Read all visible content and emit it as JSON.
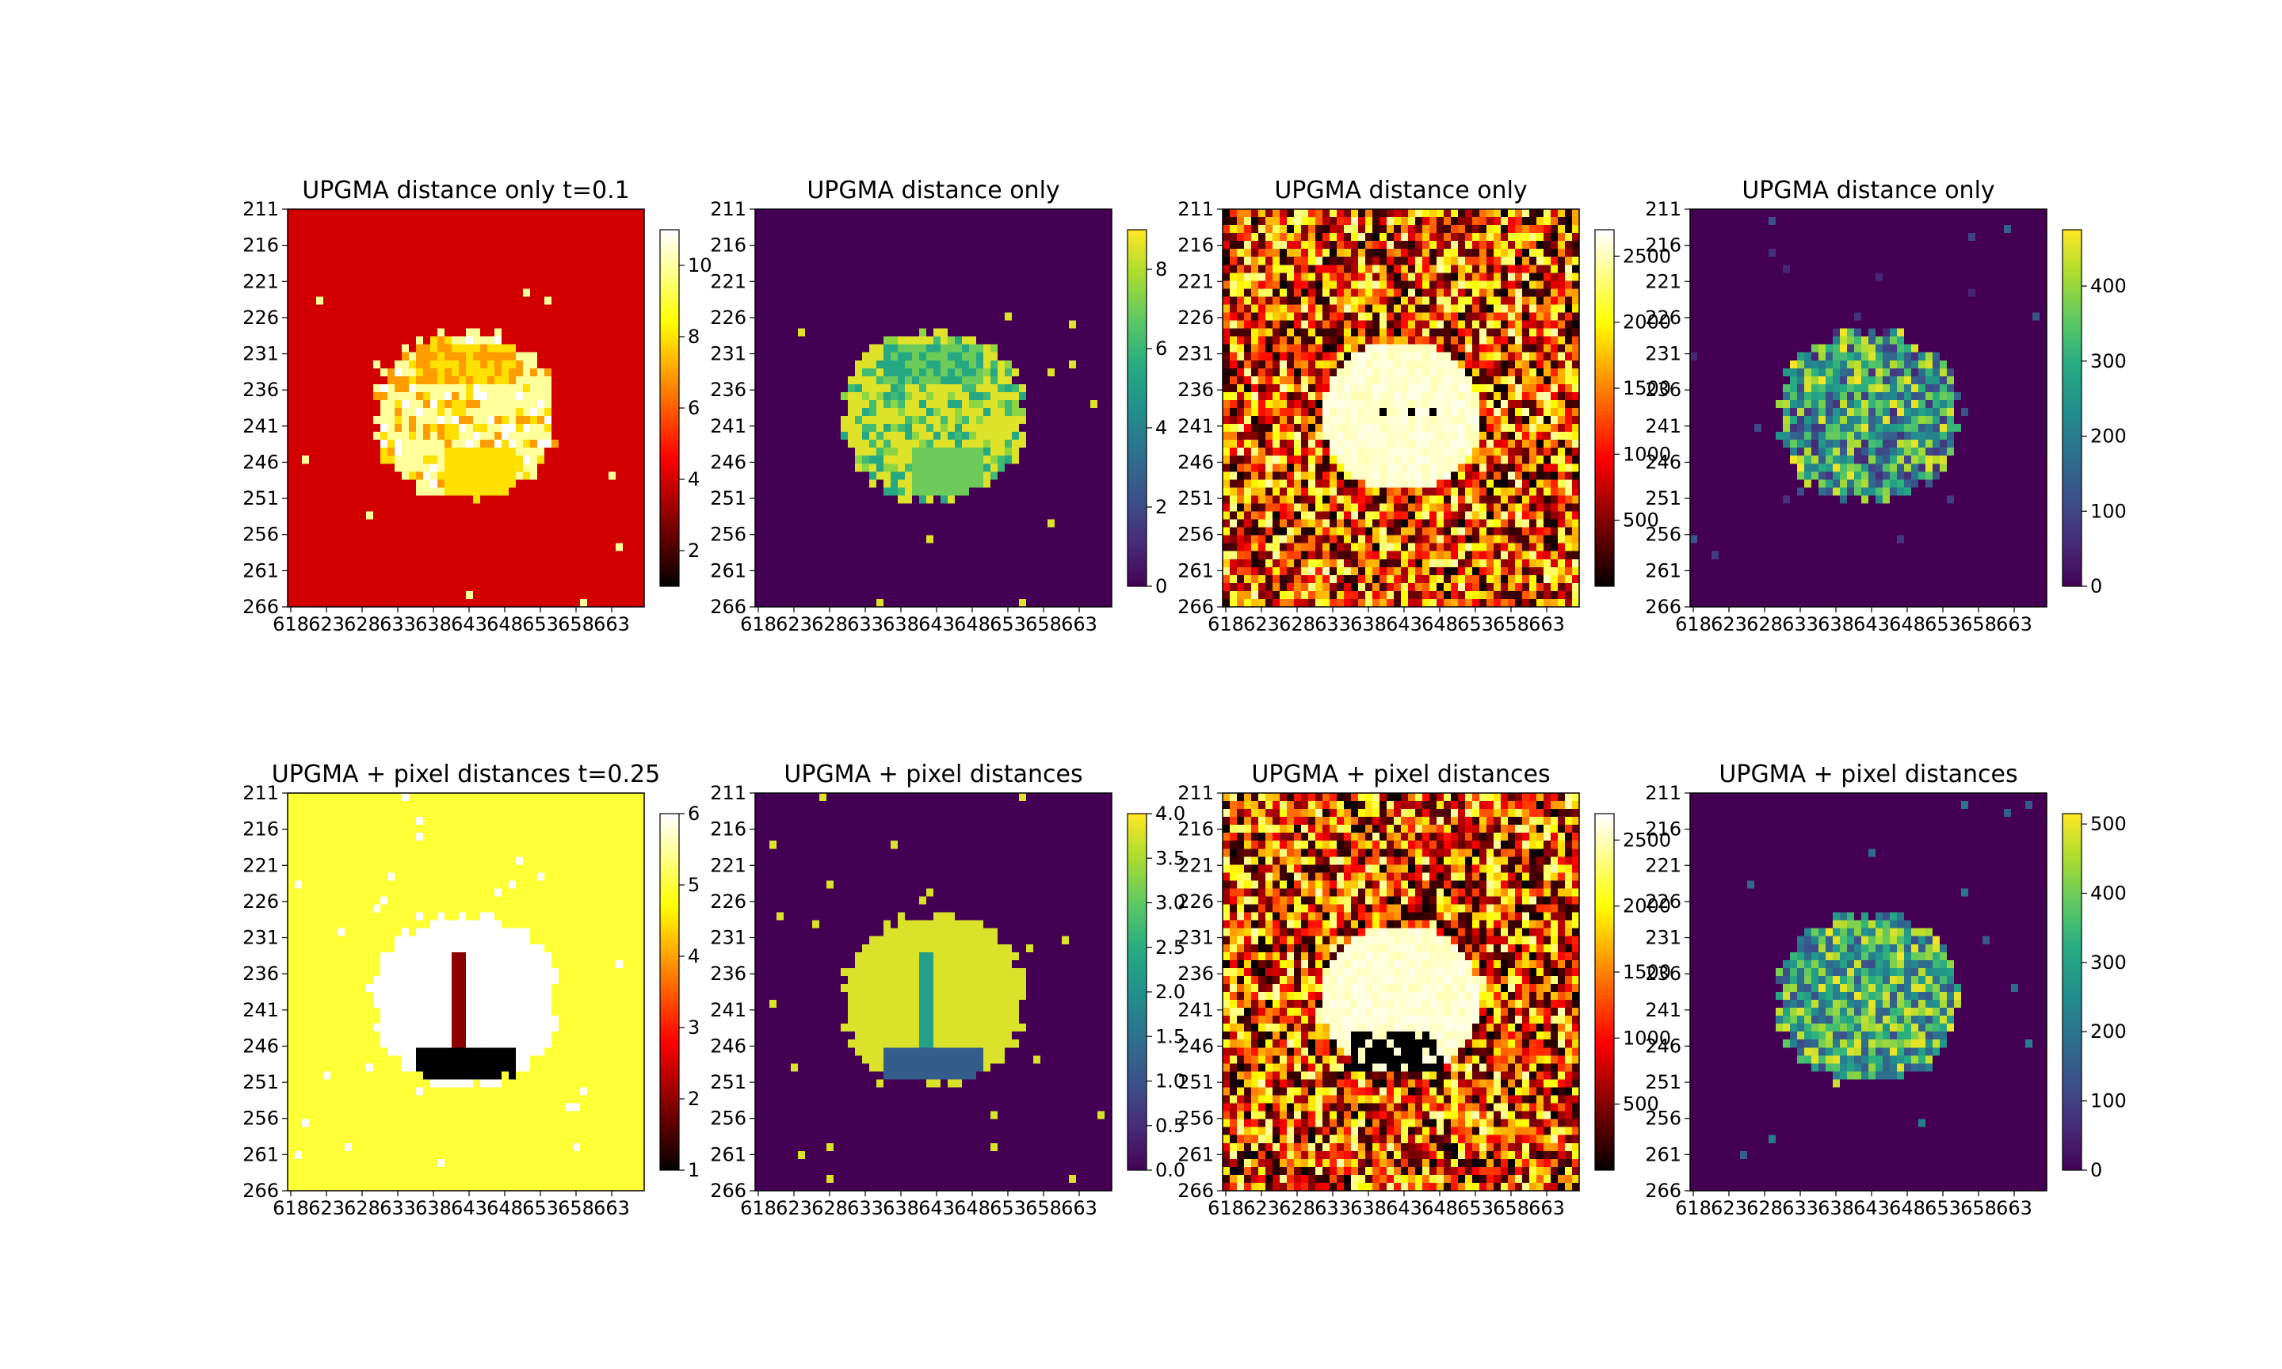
{
  "chart_data": [
    {
      "type": "heatmap",
      "title": "UPGMA distance only t=0.1",
      "colormap": "hot",
      "xticks": [
        "618",
        "623",
        "628",
        "633",
        "638",
        "643",
        "648",
        "653",
        "658",
        "663"
      ],
      "yticks": [
        "211",
        "216",
        "221",
        "226",
        "231",
        "236",
        "241",
        "246",
        "251",
        "256",
        "261",
        "266"
      ],
      "vmin": 1,
      "vmax": 11,
      "colorbar_ticks": [
        {
          "value": 2,
          "label": "2"
        },
        {
          "value": 4,
          "label": "4"
        },
        {
          "value": 6,
          "label": "6"
        },
        {
          "value": 8,
          "label": "8"
        },
        {
          "value": 10,
          "label": "10"
        }
      ],
      "pattern": "clusters",
      "background": 4,
      "blob_values": [
        10,
        10,
        10,
        10,
        7,
        8,
        11
      ],
      "core_values": [
        7,
        8
      ]
    },
    {
      "type": "heatmap",
      "title": "UPGMA distance only",
      "colormap": "viridis",
      "xticks": [
        "618",
        "623",
        "628",
        "633",
        "638",
        "643",
        "648",
        "653",
        "658",
        "663"
      ],
      "yticks": [
        "211",
        "216",
        "221",
        "226",
        "231",
        "236",
        "241",
        "246",
        "251",
        "256",
        "261",
        "266"
      ],
      "vmin": 0,
      "vmax": 9,
      "colorbar_ticks": [
        {
          "value": 0,
          "label": "0"
        },
        {
          "value": 2,
          "label": "2"
        },
        {
          "value": 4,
          "label": "4"
        },
        {
          "value": 6,
          "label": "6"
        },
        {
          "value": 8,
          "label": "8"
        }
      ],
      "pattern": "clusters",
      "background": 0,
      "blob_values": [
        8.6,
        8.6,
        8.6,
        8.6,
        5.5,
        6.2,
        7.5
      ],
      "core_values": [
        5.5,
        7.0
      ]
    },
    {
      "type": "heatmap",
      "title": "UPGMA distance only",
      "colormap": "hot",
      "xticks": [
        "618",
        "623",
        "628",
        "633",
        "638",
        "643",
        "648",
        "653",
        "658",
        "663"
      ],
      "yticks": [
        "211",
        "216",
        "221",
        "226",
        "231",
        "236",
        "241",
        "246",
        "251",
        "256",
        "261",
        "266"
      ],
      "vmin": 0,
      "vmax": 2700,
      "colorbar_ticks": [
        {
          "value": 500,
          "label": "500"
        },
        {
          "value": 1000,
          "label": "1000"
        },
        {
          "value": 1500,
          "label": "1500"
        },
        {
          "value": 2000,
          "label": "2000"
        },
        {
          "value": 2500,
          "label": "2500"
        }
      ],
      "pattern": "noisy",
      "noise_range": [
        200,
        2500
      ],
      "blob_value": 2650,
      "hole_value": 0
    },
    {
      "type": "heatmap",
      "title": "UPGMA distance only",
      "colormap": "viridis",
      "xticks": [
        "618",
        "623",
        "628",
        "633",
        "638",
        "643",
        "648",
        "653",
        "658",
        "663"
      ],
      "yticks": [
        "211",
        "216",
        "221",
        "226",
        "231",
        "236",
        "241",
        "246",
        "251",
        "256",
        "261",
        "266"
      ],
      "vmin": 0,
      "vmax": 475,
      "colorbar_ticks": [
        {
          "value": 0,
          "label": "0"
        },
        {
          "value": 100,
          "label": "100"
        },
        {
          "value": 200,
          "label": "200"
        },
        {
          "value": 300,
          "label": "300"
        },
        {
          "value": 400,
          "label": "400"
        }
      ],
      "pattern": "blobnoise",
      "background": 0,
      "blob_range": [
        50,
        470
      ]
    },
    {
      "type": "heatmap",
      "title": "UPGMA + pixel distances t=0.25",
      "colormap": "hot",
      "xticks": [
        "618",
        "623",
        "628",
        "633",
        "638",
        "643",
        "648",
        "653",
        "658",
        "663"
      ],
      "yticks": [
        "211",
        "216",
        "221",
        "226",
        "231",
        "236",
        "241",
        "246",
        "251",
        "256",
        "261",
        "266"
      ],
      "vmin": 1,
      "vmax": 6,
      "colorbar_ticks": [
        {
          "value": 1,
          "label": "1"
        },
        {
          "value": 2,
          "label": "2"
        },
        {
          "value": 3,
          "label": "3"
        },
        {
          "value": 4,
          "label": "4"
        },
        {
          "value": 5,
          "label": "5"
        },
        {
          "value": 6,
          "label": "6"
        }
      ],
      "pattern": "clusters2",
      "background": 5,
      "blob_value": 6,
      "stripe_value": 2,
      "bottom_value": 1
    },
    {
      "type": "heatmap",
      "title": "UPGMA + pixel distances",
      "colormap": "viridis",
      "xticks": [
        "618",
        "623",
        "628",
        "633",
        "638",
        "643",
        "648",
        "653",
        "658",
        "663"
      ],
      "yticks": [
        "211",
        "216",
        "221",
        "226",
        "231",
        "236",
        "241",
        "246",
        "251",
        "256",
        "261",
        "266"
      ],
      "vmin": 0,
      "vmax": 4,
      "colorbar_ticks": [
        {
          "value": 0,
          "label": "0.0"
        },
        {
          "value": 0.5,
          "label": "0.5"
        },
        {
          "value": 1,
          "label": "1.0"
        },
        {
          "value": 1.5,
          "label": "1.5"
        },
        {
          "value": 2,
          "label": "2.0"
        },
        {
          "value": 2.5,
          "label": "2.5"
        },
        {
          "value": 3,
          "label": "3.0"
        },
        {
          "value": 3.5,
          "label": "3.5"
        },
        {
          "value": 4,
          "label": "4.0"
        }
      ],
      "pattern": "clusters2",
      "background": 0,
      "blob_value": 3.8,
      "stripe_value": 2.3,
      "bottom_value": 1.2
    },
    {
      "type": "heatmap",
      "title": "UPGMA + pixel distances",
      "colormap": "hot",
      "xticks": [
        "618",
        "623",
        "628",
        "633",
        "638",
        "643",
        "648",
        "653",
        "658",
        "663"
      ],
      "yticks": [
        "211",
        "216",
        "221",
        "226",
        "231",
        "236",
        "241",
        "246",
        "251",
        "256",
        "261",
        "266"
      ],
      "vmin": 0,
      "vmax": 2700,
      "colorbar_ticks": [
        {
          "value": 500,
          "label": "500"
        },
        {
          "value": 1000,
          "label": "1000"
        },
        {
          "value": 1500,
          "label": "1500"
        },
        {
          "value": 2000,
          "label": "2000"
        },
        {
          "value": 2500,
          "label": "2500"
        }
      ],
      "pattern": "noisy2",
      "noise_range": [
        200,
        2500
      ],
      "blob_value": 2650,
      "hole_value": 0
    },
    {
      "type": "heatmap",
      "title": "UPGMA + pixel distances",
      "colormap": "viridis",
      "xticks": [
        "618",
        "623",
        "628",
        "633",
        "638",
        "643",
        "648",
        "653",
        "658",
        "663"
      ],
      "yticks": [
        "211",
        "216",
        "221",
        "226",
        "231",
        "236",
        "241",
        "246",
        "251",
        "256",
        "261",
        "266"
      ],
      "vmin": 0,
      "vmax": 515,
      "colorbar_ticks": [
        {
          "value": 0,
          "label": "0"
        },
        {
          "value": 100,
          "label": "100"
        },
        {
          "value": 200,
          "label": "200"
        },
        {
          "value": 300,
          "label": "300"
        },
        {
          "value": 400,
          "label": "400"
        },
        {
          "value": 500,
          "label": "500"
        }
      ],
      "pattern": "blobnoise2",
      "background": 0,
      "blob_range": [
        120,
        510
      ]
    }
  ]
}
